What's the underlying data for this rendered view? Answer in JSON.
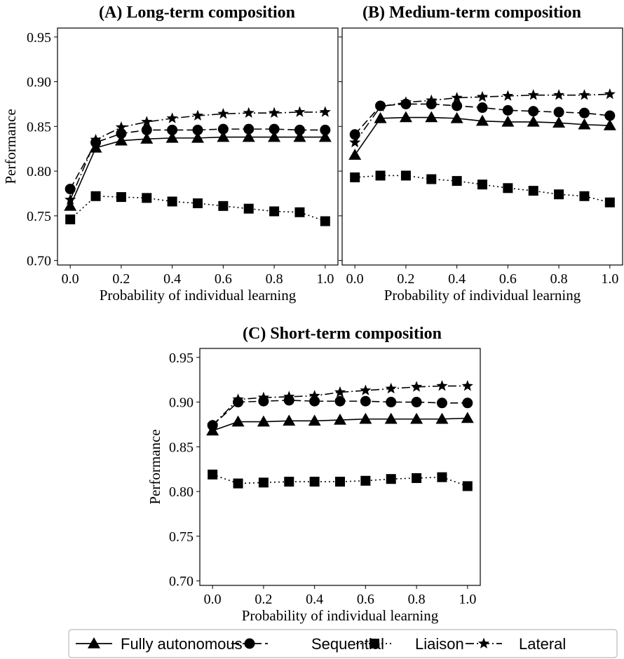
{
  "chart_data": [
    {
      "type": "line",
      "title": "(A) Long-term composition",
      "xlabel": "Probability of individual learning",
      "ylabel": "Performance",
      "xlim": [
        -0.05,
        1.05
      ],
      "ylim": [
        0.695,
        0.96
      ],
      "x": [
        0.0,
        0.1,
        0.2,
        0.3,
        0.4,
        0.5,
        0.6,
        0.7,
        0.8,
        0.9,
        1.0
      ],
      "xticks": [
        "0.0",
        "0.2",
        "0.4",
        "0.6",
        "0.8",
        "1.0"
      ],
      "yticks": [
        "0.70",
        "0.75",
        "0.80",
        "0.85",
        "0.90",
        "0.95"
      ],
      "show_yticklabels": true,
      "grid": false,
      "series": [
        {
          "name": "Fully autonomous",
          "values": [
            0.761,
            0.826,
            0.834,
            0.836,
            0.837,
            0.837,
            0.838,
            0.838,
            0.838,
            0.838,
            0.838
          ]
        },
        {
          "name": "Sequential",
          "values": [
            0.78,
            0.832,
            0.842,
            0.846,
            0.846,
            0.846,
            0.847,
            0.847,
            0.847,
            0.846,
            0.846
          ]
        },
        {
          "name": "Liaison",
          "values": [
            0.746,
            0.772,
            0.771,
            0.77,
            0.766,
            0.764,
            0.761,
            0.758,
            0.755,
            0.754,
            0.744
          ]
        },
        {
          "name": "Lateral",
          "values": [
            0.768,
            0.835,
            0.849,
            0.855,
            0.859,
            0.862,
            0.864,
            0.865,
            0.865,
            0.866,
            0.866
          ]
        }
      ]
    },
    {
      "type": "line",
      "title": "(B) Medium-term composition",
      "xlabel": "Probability of individual learning",
      "ylabel": "",
      "xlim": [
        -0.05,
        1.05
      ],
      "ylim": [
        0.695,
        0.96
      ],
      "x": [
        0.0,
        0.1,
        0.2,
        0.3,
        0.4,
        0.5,
        0.6,
        0.7,
        0.8,
        0.9,
        1.0
      ],
      "xticks": [
        "0.0",
        "0.2",
        "0.4",
        "0.6",
        "0.8",
        "1.0"
      ],
      "yticks": [
        "0.70",
        "0.75",
        "0.80",
        "0.85",
        "0.90",
        "0.95"
      ],
      "show_yticklabels": false,
      "grid": false,
      "series": [
        {
          "name": "Fully autonomous",
          "values": [
            0.818,
            0.859,
            0.86,
            0.86,
            0.859,
            0.856,
            0.855,
            0.855,
            0.854,
            0.852,
            0.851
          ]
        },
        {
          "name": "Sequential",
          "values": [
            0.841,
            0.873,
            0.875,
            0.875,
            0.873,
            0.871,
            0.868,
            0.867,
            0.866,
            0.865,
            0.862
          ]
        },
        {
          "name": "Liaison",
          "values": [
            0.793,
            0.795,
            0.795,
            0.791,
            0.789,
            0.785,
            0.781,
            0.778,
            0.774,
            0.772,
            0.765
          ]
        },
        {
          "name": "Lateral",
          "values": [
            0.832,
            0.872,
            0.877,
            0.879,
            0.882,
            0.883,
            0.884,
            0.885,
            0.885,
            0.885,
            0.886
          ]
        }
      ]
    },
    {
      "type": "line",
      "title": "(C) Short-term composition",
      "xlabel": "Probability of individual learning",
      "ylabel": "Performance",
      "xlim": [
        -0.05,
        1.05
      ],
      "ylim": [
        0.695,
        0.96
      ],
      "x": [
        0.0,
        0.1,
        0.2,
        0.3,
        0.4,
        0.5,
        0.6,
        0.7,
        0.8,
        0.9,
        1.0
      ],
      "xticks": [
        "0.0",
        "0.2",
        "0.4",
        "0.6",
        "0.8",
        "1.0"
      ],
      "yticks": [
        "0.70",
        "0.75",
        "0.80",
        "0.85",
        "0.90",
        "0.95"
      ],
      "show_yticklabels": true,
      "grid": false,
      "series": [
        {
          "name": "Fully autonomous",
          "values": [
            0.868,
            0.878,
            0.878,
            0.879,
            0.879,
            0.88,
            0.881,
            0.881,
            0.881,
            0.881,
            0.882
          ]
        },
        {
          "name": "Sequential",
          "values": [
            0.874,
            0.9,
            0.901,
            0.902,
            0.901,
            0.901,
            0.901,
            0.9,
            0.9,
            0.899,
            0.899
          ]
        },
        {
          "name": "Liaison",
          "values": [
            0.819,
            0.809,
            0.81,
            0.811,
            0.811,
            0.811,
            0.812,
            0.814,
            0.815,
            0.816,
            0.806
          ]
        },
        {
          "name": "Lateral",
          "values": [
            0.874,
            0.903,
            0.905,
            0.906,
            0.907,
            0.911,
            0.913,
            0.915,
            0.917,
            0.918,
            0.918
          ]
        }
      ]
    }
  ],
  "legend": {
    "placement": "bottom-center",
    "entries": [
      {
        "label": "Fully autonomous",
        "marker": "triangle-icon",
        "line": "solid"
      },
      {
        "label": "Sequential",
        "marker": "circle-icon",
        "line": "dashed"
      },
      {
        "label": "Liaison",
        "marker": "square-icon",
        "line": "dotted"
      },
      {
        "label": "Lateral",
        "marker": "star-icon",
        "line": "dashdot"
      }
    ]
  }
}
